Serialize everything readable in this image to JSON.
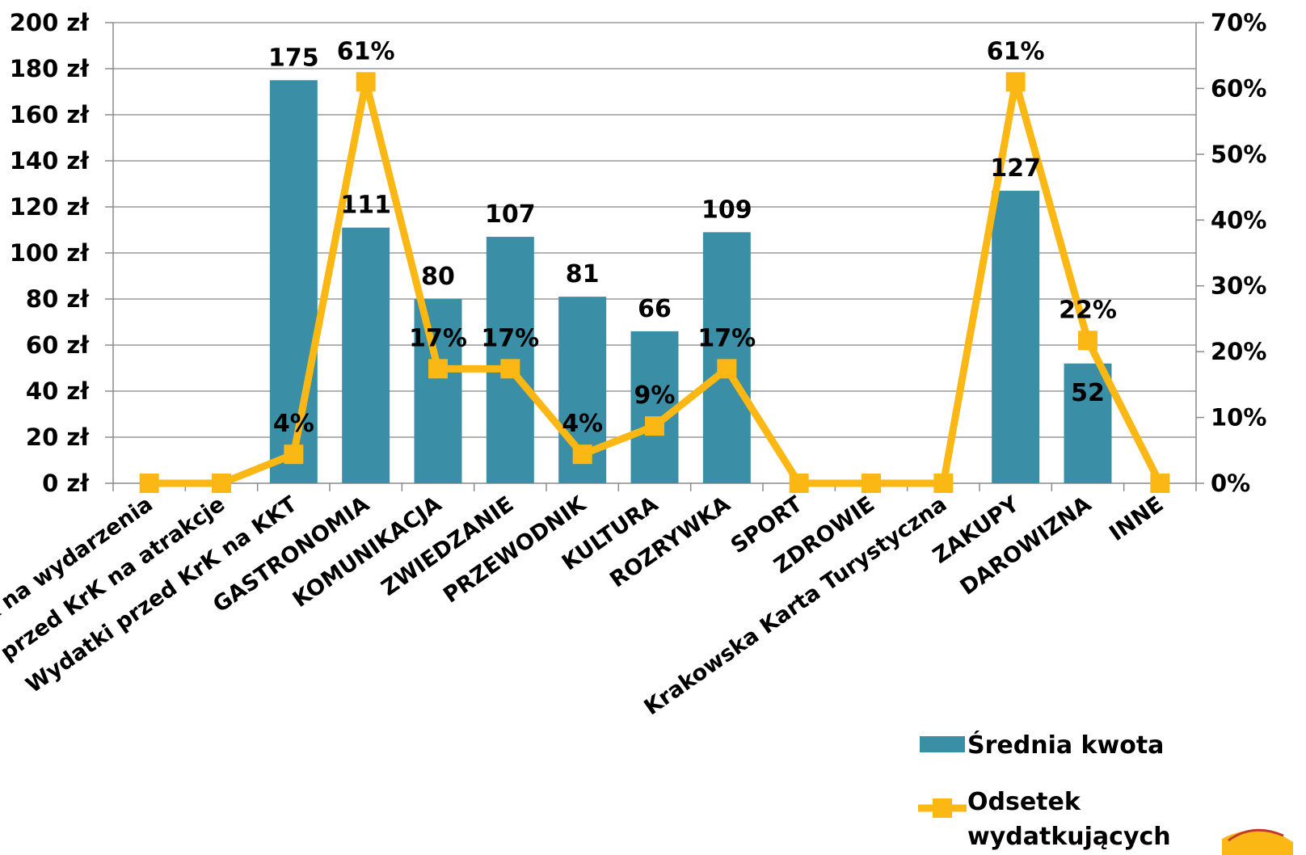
{
  "chart_data": {
    "type": "bar",
    "categories": [
      "Wydatki przed KrK na wydarzenia",
      "Wydatki przed KrK na atrakcje",
      "Wydatki przed KrK na KKT",
      "GASTRONOMIA",
      "KOMUNIKACJA",
      "ZWIEDZANIE",
      "PRZEWODNIK",
      "KULTURA",
      "ROZRYWKA",
      "SPORT",
      "ZDROWIE",
      "Krakowska Karta Turystyczna",
      "ZAKUPY",
      "DAROWIZNA",
      "INNE"
    ],
    "y_axis_left": {
      "ticks": [
        "0 zł",
        "20 zł",
        "40 zł",
        "60 zł",
        "80 zł",
        "100 zł",
        "120 zł",
        "140 zł",
        "160 zł",
        "180 zł",
        "200 zł"
      ],
      "ylim": [
        0,
        200
      ]
    },
    "y_axis_right": {
      "ticks": [
        "0%",
        "10%",
        "20%",
        "30%",
        "40%",
        "50%",
        "60%",
        "70%"
      ],
      "ylim": [
        0,
        70
      ]
    },
    "series": [
      {
        "name": "Średnia kwota",
        "type": "bar",
        "axis": "left",
        "color": "#3a8ea6",
        "values": [
          null,
          null,
          175,
          111,
          80,
          107,
          81,
          66,
          109,
          null,
          null,
          null,
          127,
          52,
          null
        ],
        "labels": [
          "",
          "",
          "175",
          "111",
          "80",
          "107",
          "81",
          "66",
          "109",
          "",
          "",
          "",
          "127",
          "52",
          ""
        ]
      },
      {
        "name": "Odsetek wydatkujących",
        "type": "line",
        "axis": "right",
        "color": "#fbb713",
        "values": [
          0,
          0,
          4.4,
          61,
          17.4,
          17.4,
          4.4,
          8.7,
          17.4,
          0,
          0,
          0,
          61,
          21.7,
          0
        ],
        "labels": [
          "",
          "",
          "4%",
          "61%",
          "17%",
          "17%",
          "4%",
          "9%",
          "17%",
          "",
          "",
          "",
          "61%",
          "22%",
          ""
        ]
      }
    ],
    "legend": {
      "position": "bottom-right",
      "items": [
        {
          "label": "Średnia kwota"
        },
        {
          "label": "Odsetek",
          "label2": "wydatkujących"
        }
      ]
    },
    "grid": true
  }
}
